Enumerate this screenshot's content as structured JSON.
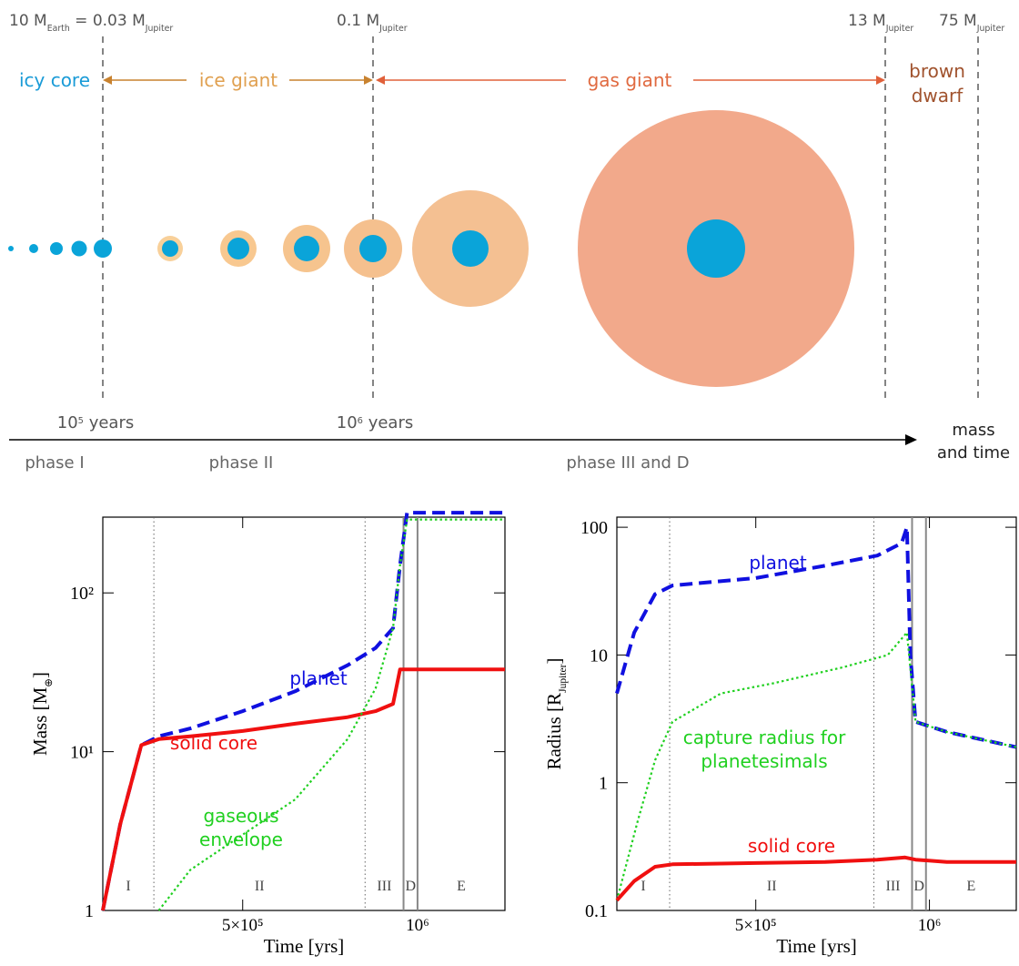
{
  "diagram": {
    "mass_labels": [
      [
        "10 M",
        "Earth",
        " = 0.03 M",
        "Jupiter"
      ],
      [
        "0.1 M",
        "Jupiter"
      ],
      [
        "13 M",
        "Jupiter"
      ],
      [
        "75 M",
        "Jupiter"
      ]
    ],
    "classes": [
      "icy core",
      "ice giant",
      "gas giant",
      [
        "brown",
        "dwarf"
      ]
    ],
    "time_labels": [
      [
        "10",
        "5",
        " years"
      ],
      [
        "10",
        "6",
        " years"
      ]
    ],
    "axis_label": [
      "mass",
      "and time"
    ],
    "phases": [
      "phase I",
      "phase II",
      "phase III and D"
    ]
  },
  "chart_data": [
    {
      "type": "line",
      "xlabel": "Time [yrs]",
      "ylabel": [
        "Mass [M",
        "⊕",
        "]"
      ],
      "ylog": true,
      "xlim": [
        100000,
        1250000
      ],
      "ylim": [
        1,
        300
      ],
      "xticks": [
        {
          "value": 500000,
          "label": "5×10⁵"
        },
        {
          "value": 1000000,
          "label": "10⁶"
        }
      ],
      "yticks": [
        1,
        {
          "value": 10,
          "label": "10¹"
        },
        {
          "value": 100,
          "label": "10²"
        }
      ],
      "phases": [
        "I",
        "II",
        "III",
        "D",
        "E"
      ],
      "phase_bounds": [
        {
          "value": 246000,
          "style": "dotted"
        },
        {
          "value": 850000,
          "style": "dotted"
        },
        {
          "value": 960000,
          "style": "solid"
        },
        {
          "value": 1000000,
          "style": "solid"
        }
      ],
      "series": [
        {
          "name": "planet",
          "color": "#1010e0",
          "style": "dashed",
          "x": [
            100000,
            150000,
            210000,
            260000,
            350000,
            500000,
            650000,
            800000,
            880000,
            930000,
            950000,
            970000,
            1100000,
            1250000
          ],
          "values": [
            1,
            3.5,
            11,
            12.5,
            14,
            18,
            24,
            35,
            45,
            60,
            150,
            320,
            320,
            320
          ]
        },
        {
          "name": "solid core",
          "color": "#f01010",
          "style": "solid",
          "x": [
            100000,
            150000,
            210000,
            260000,
            350000,
            500000,
            650000,
            800000,
            880000,
            930000,
            950000,
            970000,
            1100000,
            1250000
          ],
          "values": [
            1,
            3.5,
            11,
            12,
            12.5,
            13.5,
            15,
            16.5,
            18,
            20,
            33,
            33,
            33,
            33
          ]
        },
        {
          "name": "gaseous envelope",
          "color": "#20d020",
          "style": "dotted",
          "x": [
            260000,
            350000,
            500000,
            650000,
            800000,
            880000,
            930000,
            950000,
            970000,
            1100000,
            1250000
          ],
          "values": [
            1,
            1.8,
            3,
            5,
            12,
            25,
            60,
            150,
            290,
            290,
            290
          ]
        }
      ]
    },
    {
      "type": "line",
      "xlabel": "Time [yrs]",
      "ylabel": [
        "Radius [R",
        "Jupiter",
        "]"
      ],
      "ylog": true,
      "xlim": [
        100000,
        1250000
      ],
      "ylim": [
        0.1,
        120
      ],
      "xticks": [
        {
          "value": 500000,
          "label": "5×10⁵"
        },
        {
          "value": 1000000,
          "label": "10⁶"
        }
      ],
      "yticks": [
        0.1,
        1,
        10,
        100
      ],
      "phases": [
        "I",
        "II",
        "III",
        "D",
        "E"
      ],
      "phase_bounds": [
        {
          "value": 252000,
          "style": "dotted"
        },
        {
          "value": 840000,
          "style": "dotted"
        },
        {
          "value": 950000,
          "style": "solid"
        },
        {
          "value": 990000,
          "style": "solid"
        }
      ],
      "series": [
        {
          "name": "planet",
          "color": "#1010e0",
          "style": "dashed",
          "x": [
            100000,
            150000,
            210000,
            260000,
            500000,
            700000,
            850000,
            920000,
            935000,
            945000,
            960000,
            1050000,
            1250000
          ],
          "values": [
            5,
            15,
            30,
            35,
            40,
            50,
            60,
            75,
            100,
            10,
            3,
            2.5,
            1.9
          ]
        },
        {
          "name": "capture radius for planetesimals",
          "color": "#20d020",
          "style": "dotted",
          "x": [
            100000,
            160000,
            210000,
            260000,
            400000,
            550000,
            750000,
            880000,
            935000,
            960000,
            1050000,
            1250000
          ],
          "values": [
            0.12,
            0.5,
            1.5,
            3,
            5,
            6,
            8,
            10,
            15,
            3,
            2.5,
            1.9
          ]
        },
        {
          "name": "solid core",
          "color": "#f01010",
          "style": "solid",
          "x": [
            100000,
            150000,
            210000,
            260000,
            500000,
            700000,
            850000,
            930000,
            960000,
            1050000,
            1250000
          ],
          "values": [
            0.12,
            0.17,
            0.22,
            0.23,
            0.235,
            0.24,
            0.25,
            0.26,
            0.25,
            0.24,
            0.24
          ]
        }
      ]
    }
  ]
}
